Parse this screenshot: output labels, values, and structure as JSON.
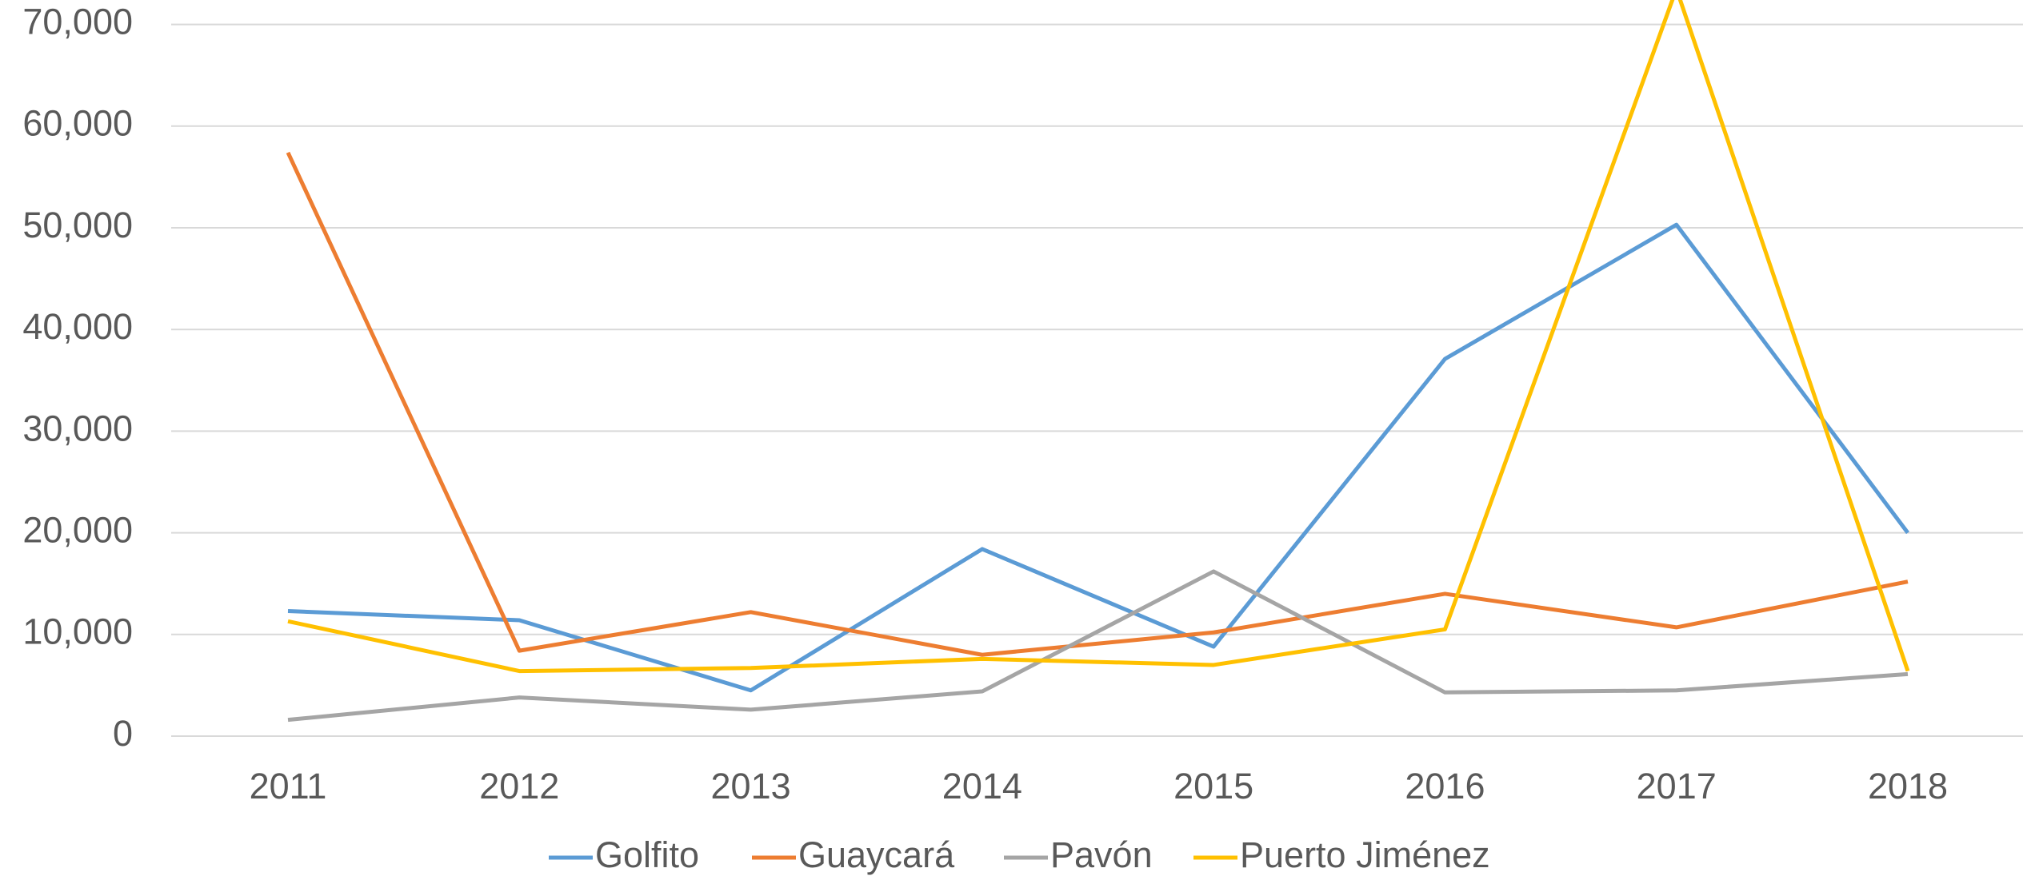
{
  "chart_data": {
    "type": "line",
    "categories": [
      "2011",
      "2012",
      "2013",
      "2014",
      "2015",
      "2016",
      "2017",
      "2018"
    ],
    "series": [
      {
        "name": "Golfito",
        "color": "#5b9bd5",
        "values": [
          12300,
          11400,
          4500,
          18400,
          8800,
          37100,
          50300,
          20000
        ]
      },
      {
        "name": "Guaycará",
        "color": "#ed7d31",
        "values": [
          57400,
          8400,
          12200,
          8000,
          10200,
          14000,
          10700,
          15200
        ]
      },
      {
        "name": "Pavón",
        "color": "#a5a5a5",
        "values": [
          1600,
          3800,
          2600,
          4400,
          16200,
          4300,
          4500,
          6100
        ]
      },
      {
        "name": "Puerto Jiménez",
        "color": "#ffc000",
        "values": [
          11300,
          6400,
          6700,
          7600,
          7000,
          10500,
          73500,
          6400
        ]
      }
    ],
    "ylim": [
      0,
      70000
    ],
    "yticks": [
      0,
      {
        "value": 10000,
        "label": "10,000"
      },
      {
        "value": 20000,
        "label": "20,000"
      },
      {
        "value": 30000,
        "label": "30,000"
      },
      {
        "value": 40000,
        "label": "40,000"
      },
      {
        "value": 50000,
        "label": "50,000"
      },
      {
        "value": 60000,
        "label": "60,000"
      },
      {
        "value": 70000,
        "label": "70,000"
      }
    ],
    "grid": true,
    "legend": "bottom"
  }
}
